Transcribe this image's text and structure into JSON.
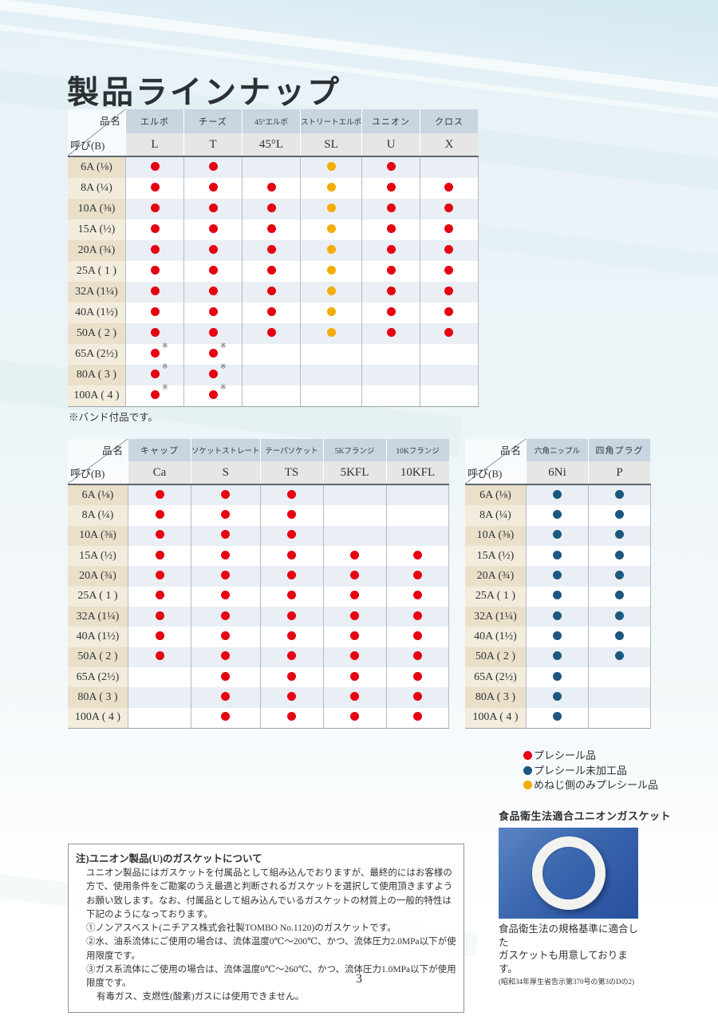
{
  "title": "製品ラインナップ",
  "page_number": "3",
  "colors": {
    "preseal": "#e60012",
    "unprocessed": "#1c577f",
    "female_only": "#f5ac00"
  },
  "corner": {
    "top": "品名",
    "bottom": "呼び(B)"
  },
  "tables": [
    {
      "name": "fittings-availability",
      "columns": [
        {
          "label": "エルボ",
          "code": "L"
        },
        {
          "label": "チーズ",
          "code": "T"
        },
        {
          "label": "45°エルボ",
          "code": "45°L"
        },
        {
          "label": "ストリートエルボ",
          "code": "SL"
        },
        {
          "label": "ユニオン",
          "code": "U"
        },
        {
          "label": "クロス",
          "code": "X"
        }
      ],
      "rows": [
        {
          "label": "6A (⅛)",
          "cells": [
            "red",
            "red",
            "",
            "yellow",
            "red",
            ""
          ]
        },
        {
          "label": "8A (¼)",
          "cells": [
            "red",
            "red",
            "red",
            "yellow",
            "red",
            "red"
          ]
        },
        {
          "label": "10A (⅜)",
          "cells": [
            "red",
            "red",
            "red",
            "yellow",
            "red",
            "red"
          ]
        },
        {
          "label": "15A (½)",
          "cells": [
            "red",
            "red",
            "red",
            "yellow",
            "red",
            "red"
          ]
        },
        {
          "label": "20A (¾)",
          "cells": [
            "red",
            "red",
            "red",
            "yellow",
            "red",
            "red"
          ]
        },
        {
          "label": "25A ( 1 )",
          "cells": [
            "red",
            "red",
            "red",
            "yellow",
            "red",
            "red"
          ]
        },
        {
          "label": "32A (1¼)",
          "cells": [
            "red",
            "red",
            "red",
            "yellow",
            "red",
            "red"
          ]
        },
        {
          "label": "40A (1½)",
          "cells": [
            "red",
            "red",
            "red",
            "yellow",
            "red",
            "red"
          ]
        },
        {
          "label": "50A ( 2 )",
          "cells": [
            "red",
            "red",
            "red",
            "yellow",
            "red",
            "red"
          ]
        },
        {
          "label": "65A (2½)",
          "cells": [
            "red*",
            "red*",
            "",
            "",
            "",
            ""
          ]
        },
        {
          "label": "80A ( 3 )",
          "cells": [
            "red*",
            "red*",
            "",
            "",
            "",
            ""
          ]
        },
        {
          "label": "100A ( 4 )",
          "cells": [
            "red*",
            "red*",
            "",
            "",
            "",
            ""
          ]
        }
      ],
      "footnote": "※バンド付品です。"
    },
    {
      "name": "sockets-flanges-availability",
      "columns": [
        {
          "label": "キャップ",
          "code": "Ca"
        },
        {
          "label": "ソケットストレート",
          "code": "S"
        },
        {
          "label": "テーパソケット",
          "code": "TS"
        },
        {
          "label": "5Kフランジ",
          "code": "5KFL"
        },
        {
          "label": "10Kフランジ",
          "code": "10KFL"
        }
      ],
      "rows": [
        {
          "label": "6A (⅛)",
          "cells": [
            "red",
            "red",
            "red",
            "",
            ""
          ]
        },
        {
          "label": "8A (¼)",
          "cells": [
            "red",
            "red",
            "red",
            "",
            ""
          ]
        },
        {
          "label": "10A (⅜)",
          "cells": [
            "red",
            "red",
            "red",
            "",
            ""
          ]
        },
        {
          "label": "15A (½)",
          "cells": [
            "red",
            "red",
            "red",
            "red",
            "red"
          ]
        },
        {
          "label": "20A (¾)",
          "cells": [
            "red",
            "red",
            "red",
            "red",
            "red"
          ]
        },
        {
          "label": "25A ( 1 )",
          "cells": [
            "red",
            "red",
            "red",
            "red",
            "red"
          ]
        },
        {
          "label": "32A (1¼)",
          "cells": [
            "red",
            "red",
            "red",
            "red",
            "red"
          ]
        },
        {
          "label": "40A (1½)",
          "cells": [
            "red",
            "red",
            "red",
            "red",
            "red"
          ]
        },
        {
          "label": "50A ( 2 )",
          "cells": [
            "red",
            "red",
            "red",
            "red",
            "red"
          ]
        },
        {
          "label": "65A (2½)",
          "cells": [
            "",
            "red",
            "red",
            "red",
            "red"
          ]
        },
        {
          "label": "80A ( 3 )",
          "cells": [
            "",
            "red",
            "red",
            "red",
            "red"
          ]
        },
        {
          "label": "100A ( 4 )",
          "cells": [
            "",
            "red",
            "red",
            "red",
            "red"
          ]
        }
      ],
      "footnote": ""
    },
    {
      "name": "nipple-plug-availability",
      "columns": [
        {
          "label": "六角ニップル",
          "code": "6Ni"
        },
        {
          "label": "四角プラグ",
          "code": "P"
        }
      ],
      "rows": [
        {
          "label": "6A (⅛)",
          "cells": [
            "blue",
            "blue"
          ]
        },
        {
          "label": "8A (¼)",
          "cells": [
            "blue",
            "blue"
          ]
        },
        {
          "label": "10A (⅜)",
          "cells": [
            "blue",
            "blue"
          ]
        },
        {
          "label": "15A (½)",
          "cells": [
            "blue",
            "blue"
          ]
        },
        {
          "label": "20A (¾)",
          "cells": [
            "blue",
            "blue"
          ]
        },
        {
          "label": "25A ( 1 )",
          "cells": [
            "blue",
            "blue"
          ]
        },
        {
          "label": "32A (1¼)",
          "cells": [
            "blue",
            "blue"
          ]
        },
        {
          "label": "40A (1½)",
          "cells": [
            "blue",
            "blue"
          ]
        },
        {
          "label": "50A ( 2 )",
          "cells": [
            "blue",
            "blue"
          ]
        },
        {
          "label": "65A (2½)",
          "cells": [
            "blue",
            ""
          ]
        },
        {
          "label": "80A ( 3 )",
          "cells": [
            "blue",
            ""
          ]
        },
        {
          "label": "100A ( 4 )",
          "cells": [
            "blue",
            ""
          ]
        }
      ],
      "footnote": ""
    }
  ],
  "legend": {
    "items": [
      {
        "type": "red",
        "label": "プレシール品"
      },
      {
        "type": "blue",
        "label": "プレシール未加工品"
      },
      {
        "type": "yellow",
        "label": "めねじ側のみプレシール品"
      }
    ]
  },
  "note_box": {
    "title": "注)ユニオン製品(U)のガスケットについて",
    "lines": [
      "ユニオン製品にはガスケットを付属品として組み込んでおりますが、最終的にはお客様の方で、使用条件をご勘案のうえ最適と判断されるガスケットを選択して使用頂きますようお願い致します。なお、付属品として組み込んでいるガスケットの材質上の一般的特性は下記のようになっております。",
      "①ノンアスベスト(ニチアス株式会社製TOMBO No.1120)のガスケットです。",
      "②水、油系流体にご使用の場合は、流体温度0℃～200℃、かつ、流体圧力2.0MPa以下が使用限度です。",
      "③ガス系流体にご使用の場合は、流体温度0℃～260℃、かつ、流体圧力1.0MPa以下が使用限度です。",
      "有毒ガス、支燃性(酸素)ガスには使用できません。"
    ]
  },
  "gasket": {
    "title": "食品衛生法適合ユニオンガスケット",
    "caption_line1": "食品衛生法の規格基準に適合した",
    "caption_line2": "ガスケットも用意しております。",
    "caption_note": "(昭和34年厚生省告示第370号の第3のDの2)"
  }
}
